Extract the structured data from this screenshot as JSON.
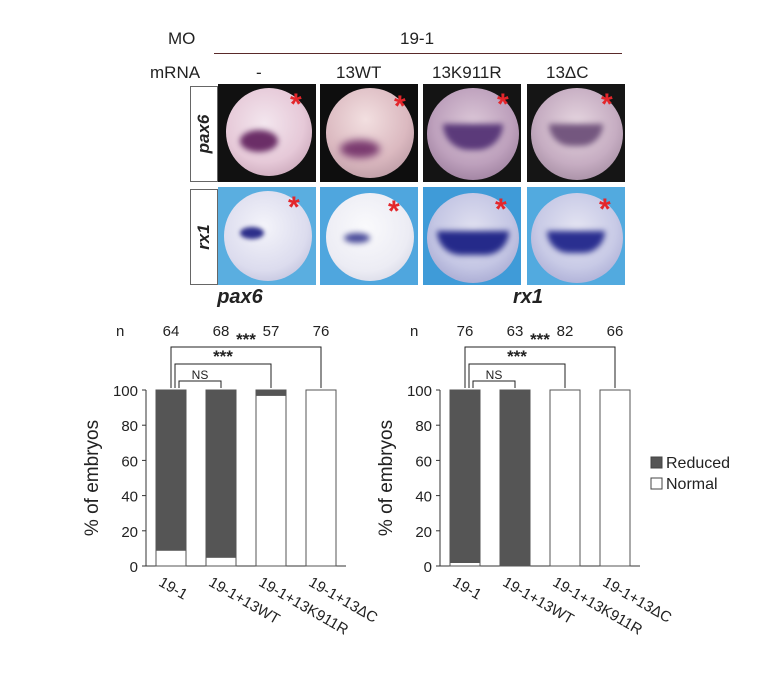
{
  "header": {
    "mo_label": "MO",
    "mo_value": "19-1",
    "mrna_label": "mRNA",
    "conditions": [
      "-",
      "13WT",
      "13K911R",
      "13ΔC"
    ]
  },
  "image_rows": [
    {
      "gene": "pax6",
      "star": "*"
    },
    {
      "gene": "rx1",
      "star": "*"
    }
  ],
  "colors": {
    "reduced": "#555555",
    "normal": "#ffffff",
    "star": "#e3262b",
    "pax6_background": "#111111",
    "rx1_background": "#5aaee0"
  },
  "legend": {
    "reduced": "Reduced",
    "normal": "Normal"
  },
  "chart_data": [
    {
      "type": "bar",
      "stacked": true,
      "title": "pax6",
      "ylabel": "% of embryos",
      "ylim": [
        0,
        100
      ],
      "yticks": [
        0,
        20,
        40,
        60,
        80,
        100
      ],
      "categories": [
        "19-1",
        "19-1+13WT",
        "19-1+13K911R",
        "19-1+13ΔC"
      ],
      "n_label": "n",
      "n": [
        64,
        68,
        57,
        76
      ],
      "series": [
        {
          "name": "Normal",
          "values": [
            9,
            5,
            97,
            100
          ]
        },
        {
          "name": "Reduced",
          "values": [
            91,
            95,
            3,
            0
          ]
        }
      ],
      "significance": [
        {
          "from": 0,
          "to": 1,
          "label": "NS"
        },
        {
          "from": 0,
          "to": 2,
          "label": "***"
        },
        {
          "from": 0,
          "to": 3,
          "label": "***"
        }
      ]
    },
    {
      "type": "bar",
      "stacked": true,
      "title": "rx1",
      "ylabel": "% of embryos",
      "ylim": [
        0,
        100
      ],
      "yticks": [
        0,
        20,
        40,
        60,
        80,
        100
      ],
      "categories": [
        "19-1",
        "19-1+13WT",
        "19-1+13K911R",
        "19-1+13ΔC"
      ],
      "n_label": "n",
      "n": [
        76,
        63,
        82,
        66
      ],
      "series": [
        {
          "name": "Normal",
          "values": [
            2,
            0,
            100,
            100
          ]
        },
        {
          "name": "Reduced",
          "values": [
            98,
            100,
            0,
            0
          ]
        }
      ],
      "significance": [
        {
          "from": 0,
          "to": 1,
          "label": "NS"
        },
        {
          "from": 0,
          "to": 2,
          "label": "***"
        },
        {
          "from": 0,
          "to": 3,
          "label": "***"
        }
      ]
    }
  ]
}
